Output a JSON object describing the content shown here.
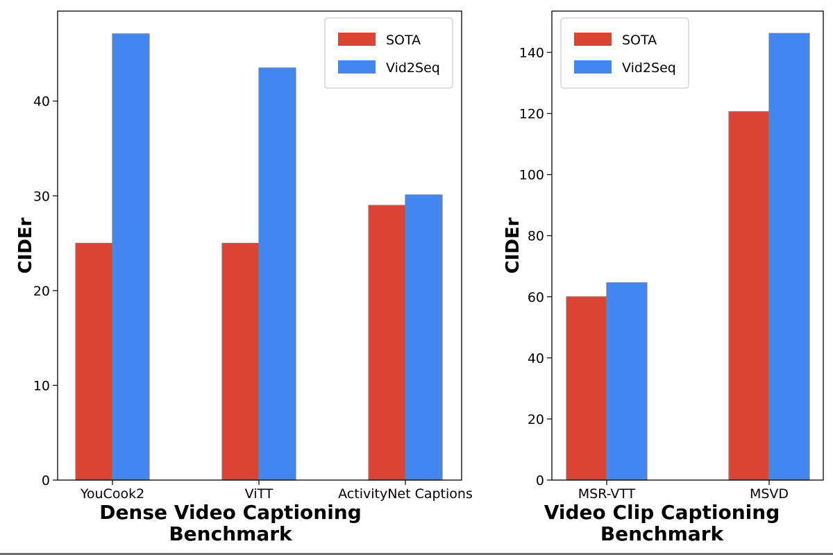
{
  "colors": {
    "sota": "#db4435",
    "vid2seq": "#4286f0"
  },
  "chart_data": [
    {
      "type": "bar",
      "title": "",
      "categories": [
        "YouCook2",
        "ViTT",
        "ActivityNet Captions"
      ],
      "series": [
        {
          "name": "SOTA",
          "values": [
            25.0,
            25.0,
            29.0
          ]
        },
        {
          "name": "Vid2Seq",
          "values": [
            47.1,
            43.5,
            30.1
          ]
        }
      ],
      "xlabel": [
        "Dense Video Captioning",
        "Benchmark"
      ],
      "ylabel": "CIDEr",
      "ylim": [
        0,
        49.5
      ],
      "yticks": [
        0,
        10,
        20,
        30,
        40
      ],
      "legend": "top-right",
      "grid": false
    },
    {
      "type": "bar",
      "title": "",
      "categories": [
        "MSR-VTT",
        "MSVD"
      ],
      "series": [
        {
          "name": "SOTA",
          "values": [
            60.0,
            120.6
          ]
        },
        {
          "name": "Vid2Seq",
          "values": [
            64.6,
            146.2
          ]
        }
      ],
      "xlabel": [
        "Video Clip Captioning",
        "Benchmark"
      ],
      "ylabel": "CIDEr",
      "ylim": [
        0,
        153.5
      ],
      "yticks": [
        0,
        20,
        40,
        60,
        80,
        100,
        120,
        140
      ],
      "legend": "top-left",
      "grid": false
    }
  ]
}
